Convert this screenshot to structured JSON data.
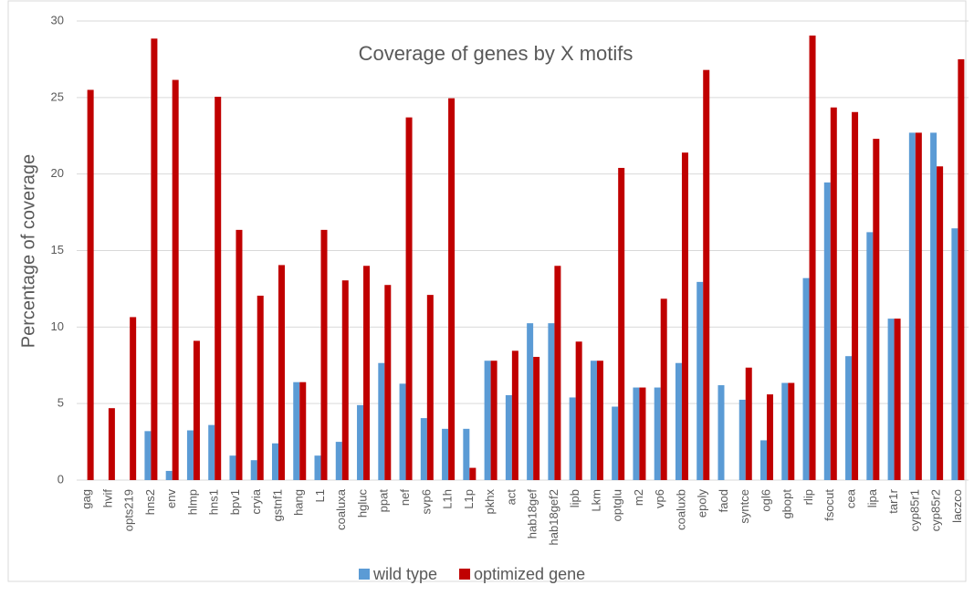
{
  "chart_data": {
    "type": "bar",
    "title": "Coverage of genes by X motifs",
    "y_label": "Percentage of coverage",
    "categories": [
      "gag",
      "hvif",
      "opts219",
      "hns2",
      "env",
      "hlmp",
      "hns1",
      "bpv1",
      "cryia",
      "gstnf1",
      "hang",
      "L1",
      "coaluxa",
      "hgluc",
      "ppat",
      "nef",
      "svp6",
      "L1h",
      "L1p",
      "pkhx",
      "act",
      "hab18gef",
      "hab18gef2",
      "lipb",
      "Lkm",
      "optglu",
      "m2",
      "vp6",
      "coaluxb",
      "epoly",
      "faod",
      "syntce",
      "ogl6",
      "gbopt",
      "rlip",
      "fsocut",
      "cea",
      "lipa",
      "tar1r",
      "cyp85r1",
      "cyp85r2",
      "laczco"
    ],
    "series": [
      {
        "name": "wild type",
        "color": "#5b9bd5",
        "values": [
          0,
          0,
          0,
          3.2,
          0.6,
          3.25,
          3.6,
          1.6,
          1.3,
          2.4,
          6.4,
          1.6,
          2.5,
          4.9,
          7.65,
          6.3,
          4.05,
          3.35,
          3.35,
          7.8,
          5.55,
          10.25,
          10.25,
          5.4,
          7.8,
          4.8,
          6.05,
          6.05,
          7.65,
          12.95,
          6.2,
          5.25,
          2.6,
          6.35,
          13.2,
          19.45,
          8.1,
          16.2,
          10.55,
          22.7,
          22.7,
          16.45
        ]
      },
      {
        "name": "optimized gene",
        "color": "#c00000",
        "values": [
          25.5,
          4.7,
          10.65,
          28.85,
          26.15,
          9.1,
          25.05,
          16.35,
          12.05,
          14.05,
          6.4,
          16.35,
          13.05,
          14.0,
          12.75,
          23.7,
          12.1,
          24.95,
          0.8,
          7.8,
          8.45,
          8.05,
          14.0,
          9.05,
          7.8,
          20.4,
          6.05,
          11.85,
          21.4,
          26.8,
          0,
          7.35,
          5.6,
          6.35,
          29.05,
          24.35,
          24.05,
          22.3,
          10.55,
          22.7,
          20.5,
          27.5
        ]
      }
    ],
    "ylim": [
      0,
      30
    ],
    "yticks": [
      0,
      5,
      10,
      15,
      20,
      25,
      30
    ],
    "grid": true,
    "legend": "bottom"
  }
}
